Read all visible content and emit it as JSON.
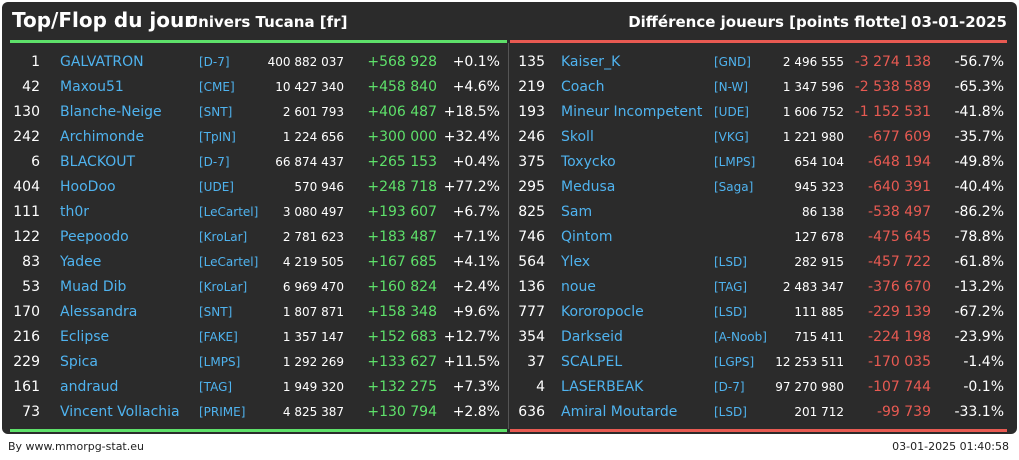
{
  "header": {
    "title": "Top/Flop du jour",
    "universe": "Univers Tucana [fr]",
    "subtitle": "Différence joueurs [points flotte]",
    "date": "03-01-2025"
  },
  "top": [
    {
      "rank": "1",
      "name": "GALVATRON",
      "tag": "[D-7]",
      "points": "400 882 037",
      "diff": "+568 928",
      "pct": "+0.1%"
    },
    {
      "rank": "42",
      "name": "Maxou51",
      "tag": "[CME]",
      "points": "10 427 340",
      "diff": "+458 840",
      "pct": "+4.6%"
    },
    {
      "rank": "130",
      "name": "Blanche-Neige",
      "tag": "[SNT]",
      "points": "2 601 793",
      "diff": "+406 487",
      "pct": "+18.5%"
    },
    {
      "rank": "242",
      "name": "Archimonde",
      "tag": "[TpIN]",
      "points": "1 224 656",
      "diff": "+300 000",
      "pct": "+32.4%"
    },
    {
      "rank": "6",
      "name": "BLACKOUT",
      "tag": "[D-7]",
      "points": "66 874 437",
      "diff": "+265 153",
      "pct": "+0.4%"
    },
    {
      "rank": "404",
      "name": "HooDoo",
      "tag": "[UDE]",
      "points": "570 946",
      "diff": "+248 718",
      "pct": "+77.2%"
    },
    {
      "rank": "111",
      "name": "th0r",
      "tag": "[LeCartel]",
      "points": "3 080 497",
      "diff": "+193 607",
      "pct": "+6.7%"
    },
    {
      "rank": "122",
      "name": "Peepoodo",
      "tag": "[KroLar]",
      "points": "2 781 623",
      "diff": "+183 487",
      "pct": "+7.1%"
    },
    {
      "rank": "83",
      "name": "Yadee",
      "tag": "[LeCartel]",
      "points": "4 219 505",
      "diff": "+167 685",
      "pct": "+4.1%"
    },
    {
      "rank": "53",
      "name": "Muad Dib",
      "tag": "[KroLar]",
      "points": "6 969 470",
      "diff": "+160 824",
      "pct": "+2.4%"
    },
    {
      "rank": "170",
      "name": "Alessandra",
      "tag": "[SNT]",
      "points": "1 807 871",
      "diff": "+158 348",
      "pct": "+9.6%"
    },
    {
      "rank": "216",
      "name": "Eclipse",
      "tag": "[FAKE]",
      "points": "1 357 147",
      "diff": "+152 683",
      "pct": "+12.7%"
    },
    {
      "rank": "229",
      "name": "Spica",
      "tag": "[LMPS]",
      "points": "1 292 269",
      "diff": "+133 627",
      "pct": "+11.5%"
    },
    {
      "rank": "161",
      "name": "andraud",
      "tag": "[TAG]",
      "points": "1 949 320",
      "diff": "+132 275",
      "pct": "+7.3%"
    },
    {
      "rank": "73",
      "name": "Vincent Vollachia",
      "tag": "[PRIME]",
      "points": "4 825 387",
      "diff": "+130 794",
      "pct": "+2.8%"
    }
  ],
  "flop": [
    {
      "rank": "135",
      "name": "Kaiser_K",
      "tag": "[GND]",
      "points": "2 496 555",
      "diff": "-3 274 138",
      "pct": "-56.7%"
    },
    {
      "rank": "219",
      "name": "Coach",
      "tag": "[N-W]",
      "points": "1 347 596",
      "diff": "-2 538 589",
      "pct": "-65.3%"
    },
    {
      "rank": "193",
      "name": "Mineur Incompetent",
      "tag": "[UDE]",
      "points": "1 606 752",
      "diff": "-1 152 531",
      "pct": "-41.8%"
    },
    {
      "rank": "246",
      "name": "Skoll",
      "tag": "[VKG]",
      "points": "1 221 980",
      "diff": "-677 609",
      "pct": "-35.7%"
    },
    {
      "rank": "375",
      "name": "Toxycko",
      "tag": "[LMPS]",
      "points": "654 104",
      "diff": "-648 194",
      "pct": "-49.8%"
    },
    {
      "rank": "295",
      "name": "Medusa",
      "tag": "[Saga]",
      "points": "945 323",
      "diff": "-640 391",
      "pct": "-40.4%"
    },
    {
      "rank": "825",
      "name": "Sam",
      "tag": "",
      "points": "86 138",
      "diff": "-538 497",
      "pct": "-86.2%"
    },
    {
      "rank": "746",
      "name": "Qintom",
      "tag": "",
      "points": "127 678",
      "diff": "-475 645",
      "pct": "-78.8%"
    },
    {
      "rank": "564",
      "name": "Ylex",
      "tag": "[LSD]",
      "points": "282 915",
      "diff": "-457 722",
      "pct": "-61.8%"
    },
    {
      "rank": "136",
      "name": "noue",
      "tag": "[TAG]",
      "points": "2 483 347",
      "diff": "-376 670",
      "pct": "-13.2%"
    },
    {
      "rank": "777",
      "name": "Kororopocle",
      "tag": "[LSD]",
      "points": "111 885",
      "diff": "-229 139",
      "pct": "-67.2%"
    },
    {
      "rank": "354",
      "name": "Darkseid",
      "tag": "[A-Noob]",
      "points": "715 411",
      "diff": "-224 198",
      "pct": "-23.9%"
    },
    {
      "rank": "37",
      "name": "SCALPEL",
      "tag": "[LGPS]",
      "points": "12 253 511",
      "diff": "-170 035",
      "pct": "-1.4%"
    },
    {
      "rank": "4",
      "name": "LASERBEAK",
      "tag": "[D-7]",
      "points": "97 270 980",
      "diff": "-107 744",
      "pct": "-0.1%"
    },
    {
      "rank": "636",
      "name": "Amiral Moutarde",
      "tag": "[LSD]",
      "points": "201 712",
      "diff": "-99 739",
      "pct": "-33.1%"
    }
  ],
  "footer": {
    "credit": "By www.mmorpg-stat.eu",
    "timestamp": "03-01-2025 01:40:58"
  },
  "colors": {
    "positive": "#5ee06a",
    "negative": "#e85a52",
    "link": "#4fb3ef",
    "panel": "#2b2b2b"
  }
}
